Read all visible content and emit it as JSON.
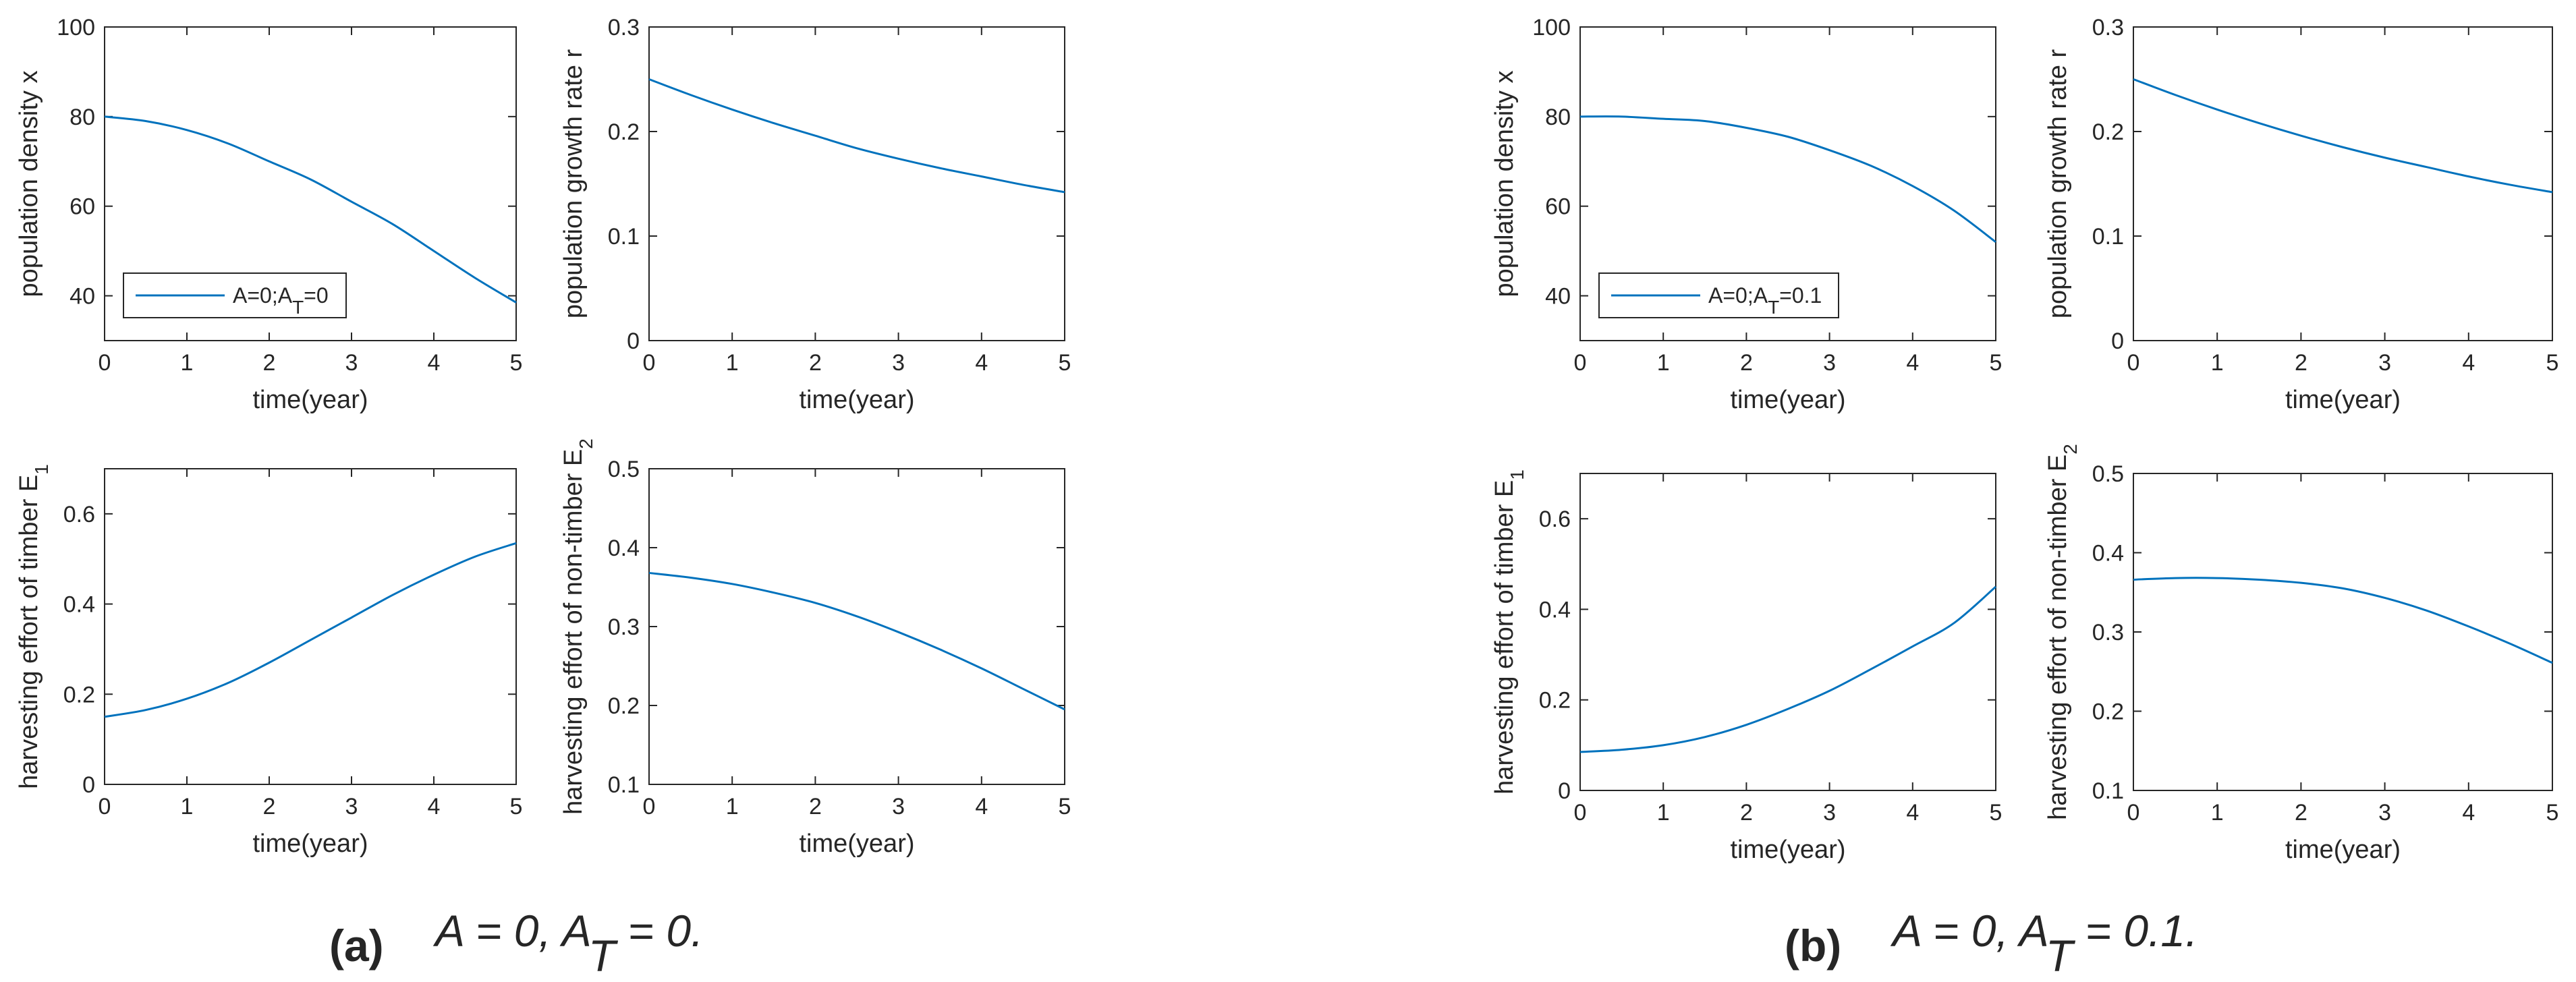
{
  "line_color": "#0072BD",
  "x_label": "time(year)",
  "panels": [
    {
      "id": "a",
      "letter": "(a)",
      "caption": "A = 0, A_T = 0.",
      "legend": "A=0;A_T=0"
    },
    {
      "id": "b",
      "letter": "(b)",
      "caption": "A = 0, A_T = 0.1.",
      "legend": "A=0;A_T=0.1"
    }
  ],
  "chart_data": [
    {
      "panel": "a",
      "subplot": "population-density",
      "type": "line",
      "xlabel": "time(year)",
      "ylabel": "population density x",
      "xlim": [
        0,
        5
      ],
      "ylim": [
        30,
        100
      ],
      "xticks": [
        0,
        1,
        2,
        3,
        4,
        5
      ],
      "yticks": [
        40,
        60,
        80,
        100
      ],
      "legend": "A=0;A_T=0",
      "legend_position": "lower-left",
      "x": [
        0,
        0.5,
        1,
        1.5,
        2,
        2.5,
        3,
        3.5,
        4,
        4.5,
        5
      ],
      "y": [
        80,
        79,
        77,
        74,
        70,
        66,
        61,
        56,
        50,
        44,
        38.5
      ]
    },
    {
      "panel": "a",
      "subplot": "growth-rate",
      "type": "line",
      "xlabel": "time(year)",
      "ylabel": "population growth rate r",
      "xlim": [
        0,
        5
      ],
      "ylim": [
        0,
        0.3
      ],
      "xticks": [
        0,
        1,
        2,
        3,
        4,
        5
      ],
      "yticks": [
        0,
        0.1,
        0.2,
        0.3
      ],
      "x": [
        0,
        0.5,
        1,
        1.5,
        2,
        2.5,
        3,
        3.5,
        4,
        4.5,
        5
      ],
      "y": [
        0.25,
        0.235,
        0.221,
        0.208,
        0.196,
        0.184,
        0.174,
        0.165,
        0.157,
        0.149,
        0.142
      ]
    },
    {
      "panel": "a",
      "subplot": "timber-effort",
      "type": "line",
      "xlabel": "time(year)",
      "ylabel": "harvesting effort of timber E_1",
      "xlim": [
        0,
        5
      ],
      "ylim": [
        0,
        0.7
      ],
      "xticks": [
        0,
        1,
        2,
        3,
        4,
        5
      ],
      "yticks": [
        0,
        0.2,
        0.4,
        0.6
      ],
      "x": [
        0,
        0.5,
        1,
        1.5,
        2,
        2.5,
        3,
        3.5,
        4,
        4.5,
        5
      ],
      "y": [
        0.15,
        0.165,
        0.19,
        0.225,
        0.27,
        0.32,
        0.37,
        0.42,
        0.465,
        0.505,
        0.535
      ]
    },
    {
      "panel": "a",
      "subplot": "non-timber-effort",
      "type": "line",
      "xlabel": "time(year)",
      "ylabel": "harvesting effort of non-timber E_2",
      "xlim": [
        0,
        5
      ],
      "ylim": [
        0.1,
        0.5
      ],
      "xticks": [
        0,
        1,
        2,
        3,
        4,
        5
      ],
      "yticks": [
        0.1,
        0.2,
        0.3,
        0.4,
        0.5
      ],
      "x": [
        0,
        0.5,
        1,
        1.5,
        2,
        2.5,
        3,
        3.5,
        4,
        4.5,
        5
      ],
      "y": [
        0.368,
        0.362,
        0.354,
        0.343,
        0.33,
        0.313,
        0.293,
        0.271,
        0.247,
        0.221,
        0.195
      ]
    },
    {
      "panel": "b",
      "subplot": "population-density",
      "type": "line",
      "xlabel": "time(year)",
      "ylabel": "population density x",
      "xlim": [
        0,
        5
      ],
      "ylim": [
        30,
        100
      ],
      "xticks": [
        0,
        1,
        2,
        3,
        4,
        5
      ],
      "yticks": [
        40,
        60,
        80,
        100
      ],
      "legend": "A=0;A_T=0.1",
      "legend_position": "lower-left",
      "x": [
        0,
        0.5,
        1,
        1.5,
        2,
        2.5,
        3,
        3.5,
        4,
        4.5,
        5
      ],
      "y": [
        80,
        80,
        79.5,
        79,
        77.5,
        75.5,
        72.5,
        69,
        64.5,
        59,
        52
      ]
    },
    {
      "panel": "b",
      "subplot": "growth-rate",
      "type": "line",
      "xlabel": "time(year)",
      "ylabel": "population growth rate r",
      "xlim": [
        0,
        5
      ],
      "ylim": [
        0,
        0.3
      ],
      "xticks": [
        0,
        1,
        2,
        3,
        4,
        5
      ],
      "yticks": [
        0,
        0.1,
        0.2,
        0.3
      ],
      "x": [
        0,
        0.5,
        1,
        1.5,
        2,
        2.5,
        3,
        3.5,
        4,
        4.5,
        5
      ],
      "y": [
        0.25,
        0.235,
        0.221,
        0.208,
        0.196,
        0.185,
        0.175,
        0.166,
        0.157,
        0.149,
        0.142
      ]
    },
    {
      "panel": "b",
      "subplot": "timber-effort",
      "type": "line",
      "xlabel": "time(year)",
      "ylabel": "harvesting effort of timber E_1",
      "xlim": [
        0,
        5
      ],
      "ylim": [
        0,
        0.7
      ],
      "xticks": [
        0,
        1,
        2,
        3,
        4,
        5
      ],
      "yticks": [
        0,
        0.2,
        0.4,
        0.6
      ],
      "x": [
        0,
        0.5,
        1,
        1.5,
        2,
        2.5,
        3,
        3.5,
        4,
        4.5,
        5
      ],
      "y": [
        0.085,
        0.09,
        0.1,
        0.118,
        0.145,
        0.18,
        0.22,
        0.268,
        0.318,
        0.37,
        0.45
      ]
    },
    {
      "panel": "b",
      "subplot": "non-timber-effort",
      "type": "line",
      "xlabel": "time(year)",
      "ylabel": "harvesting effort of non-timber E_2",
      "xlim": [
        0,
        5
      ],
      "ylim": [
        0.1,
        0.5
      ],
      "xticks": [
        0,
        1,
        2,
        3,
        4,
        5
      ],
      "yticks": [
        0.1,
        0.2,
        0.3,
        0.4,
        0.5
      ],
      "x": [
        0,
        0.5,
        1,
        1.5,
        2,
        2.5,
        3,
        3.5,
        4,
        4.5,
        5
      ],
      "y": [
        0.366,
        0.368,
        0.368,
        0.366,
        0.362,
        0.355,
        0.343,
        0.327,
        0.307,
        0.285,
        0.261
      ]
    }
  ]
}
